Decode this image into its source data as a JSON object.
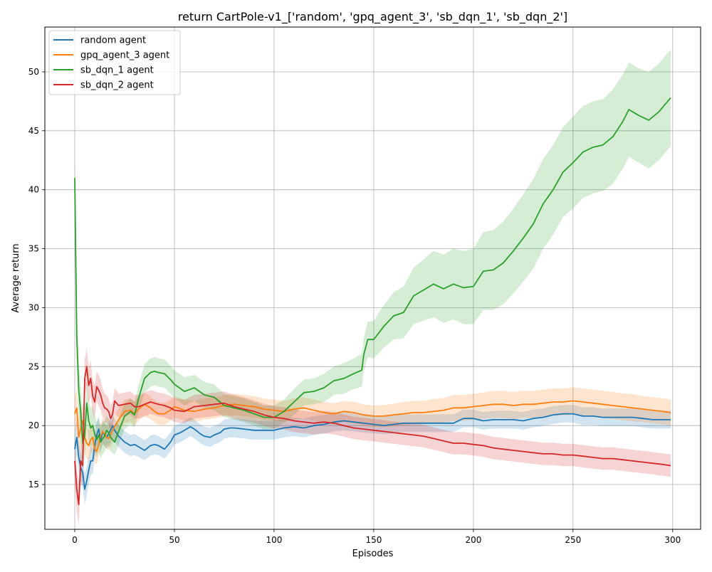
{
  "chart_data": {
    "type": "line",
    "title": "return CartPole-v1_['random', 'gpq_agent_3', 'sb_dqn_1', 'sb_dqn_2']",
    "xlabel": "Episodes",
    "ylabel": "Average return",
    "xlim": [
      -15,
      314
    ],
    "ylim": [
      11.2,
      53.8
    ],
    "xticks": [
      0,
      50,
      100,
      150,
      200,
      250,
      300
    ],
    "yticks": [
      15,
      20,
      25,
      30,
      35,
      40,
      45,
      50
    ],
    "grid": true,
    "legend_position": "top-left",
    "series": [
      {
        "name": "random agent",
        "color": "#1f77b4",
        "x": [
          0,
          1,
          2,
          3,
          4,
          5,
          6,
          7,
          8,
          9,
          10,
          11,
          12,
          13,
          14,
          15,
          16,
          17,
          18,
          19,
          20,
          22,
          25,
          28,
          30,
          32,
          35,
          38,
          40,
          42,
          45,
          48,
          50,
          53,
          55,
          58,
          60,
          63,
          65,
          68,
          70,
          73,
          75,
          78,
          80,
          85,
          90,
          95,
          100,
          105,
          110,
          115,
          120,
          125,
          130,
          135,
          140,
          145,
          150,
          155,
          160,
          165,
          170,
          175,
          180,
          185,
          190,
          195,
          200,
          205,
          210,
          215,
          220,
          225,
          230,
          235,
          240,
          245,
          250,
          255,
          260,
          265,
          270,
          275,
          280,
          285,
          290,
          295,
          299
        ],
        "y": [
          18.0,
          19.0,
          17.3,
          16.4,
          16.0,
          14.6,
          15.3,
          16.2,
          17.0,
          17.0,
          18.3,
          19.2,
          19.7,
          18.7,
          19.5,
          19.2,
          19.0,
          19.3,
          19.6,
          20.0,
          19.6,
          19.1,
          18.6,
          18.3,
          18.4,
          18.2,
          17.9,
          18.3,
          18.4,
          18.3,
          18.0,
          18.6,
          19.2,
          19.4,
          19.6,
          19.9,
          19.7,
          19.3,
          19.1,
          19.0,
          19.2,
          19.4,
          19.7,
          19.8,
          19.8,
          19.7,
          19.6,
          19.6,
          19.6,
          19.8,
          19.9,
          19.8,
          20.0,
          20.1,
          20.3,
          20.4,
          20.3,
          20.2,
          20.1,
          20.0,
          20.1,
          20.2,
          20.2,
          20.2,
          20.2,
          20.2,
          20.2,
          20.6,
          20.6,
          20.4,
          20.5,
          20.5,
          20.5,
          20.4,
          20.6,
          20.7,
          20.9,
          21.0,
          21.0,
          20.8,
          20.8,
          20.7,
          20.7,
          20.7,
          20.7,
          20.6,
          20.5,
          20.5,
          20.5
        ],
        "band_width": [
          1.5,
          1.4,
          1.3,
          1.3,
          1.3,
          1.3,
          1.2,
          1.2,
          1.2,
          1.1,
          1.1,
          1.1,
          1.1,
          1.0,
          1.0,
          1.0,
          1.0,
          1.0,
          1.0,
          1.0,
          0.95,
          0.95,
          0.9,
          0.9,
          0.9,
          0.85,
          0.85,
          0.85,
          0.85,
          0.8,
          0.8,
          0.8,
          0.8,
          0.8,
          0.8,
          0.8,
          0.8,
          0.8,
          0.8,
          0.8,
          0.8,
          0.8,
          0.8,
          0.8,
          0.8,
          0.8,
          0.8,
          0.8,
          0.8,
          0.8,
          0.8,
          0.8,
          0.8,
          0.8,
          0.8,
          0.8,
          0.8,
          0.8,
          0.75,
          0.75,
          0.75,
          0.75,
          0.75,
          0.75,
          0.75,
          0.75,
          0.75,
          0.75,
          0.75,
          0.75,
          0.75,
          0.75,
          0.75,
          0.75,
          0.75,
          0.75,
          0.75,
          0.75,
          0.75,
          0.75,
          0.75,
          0.75,
          0.75,
          0.75,
          0.75,
          0.75,
          0.75,
          0.75,
          0.75
        ]
      },
      {
        "name": "gpq_agent_3 agent",
        "color": "#ff7f0e",
        "x": [
          0,
          1,
          2,
          3,
          4,
          5,
          6,
          7,
          8,
          9,
          10,
          11,
          12,
          13,
          14,
          15,
          16,
          17,
          18,
          19,
          20,
          22,
          25,
          28,
          30,
          32,
          35,
          38,
          40,
          42,
          45,
          48,
          50,
          55,
          60,
          65,
          70,
          75,
          80,
          85,
          90,
          95,
          100,
          105,
          110,
          115,
          120,
          125,
          130,
          135,
          140,
          145,
          150,
          155,
          160,
          165,
          170,
          175,
          180,
          185,
          190,
          195,
          200,
          205,
          210,
          215,
          220,
          225,
          230,
          235,
          240,
          245,
          250,
          255,
          260,
          265,
          270,
          275,
          280,
          285,
          290,
          295,
          299
        ],
        "y": [
          21.0,
          21.5,
          19.0,
          19.8,
          20.4,
          19.0,
          18.5,
          18.3,
          18.8,
          19.0,
          18.0,
          17.8,
          18.4,
          19.1,
          19.5,
          19.3,
          19.0,
          18.9,
          19.2,
          19.6,
          19.9,
          20.5,
          21.2,
          21.3,
          21.0,
          21.4,
          21.8,
          21.5,
          21.2,
          21.0,
          21.0,
          21.3,
          21.6,
          21.3,
          21.2,
          21.4,
          21.5,
          21.7,
          21.8,
          21.7,
          21.6,
          21.4,
          21.3,
          21.2,
          21.4,
          21.5,
          21.3,
          21.1,
          21.0,
          21.2,
          21.1,
          20.9,
          20.8,
          20.8,
          20.9,
          21.0,
          21.1,
          21.1,
          21.2,
          21.3,
          21.5,
          21.5,
          21.6,
          21.7,
          21.8,
          21.8,
          21.7,
          21.8,
          21.8,
          21.9,
          22.0,
          22.0,
          22.1,
          22.0,
          21.9,
          21.8,
          21.7,
          21.6,
          21.5,
          21.4,
          21.3,
          21.2,
          21.1
        ],
        "band_width": [
          1.6,
          1.5,
          1.5,
          1.4,
          1.4,
          1.3,
          1.3,
          1.3,
          1.2,
          1.2,
          1.2,
          1.1,
          1.1,
          1.1,
          1.1,
          1.0,
          1.0,
          1.0,
          1.0,
          1.0,
          1.0,
          1.0,
          1.0,
          1.0,
          1.0,
          1.0,
          1.0,
          0.95,
          0.95,
          0.95,
          0.95,
          0.9,
          0.9,
          0.9,
          0.9,
          0.9,
          0.9,
          0.9,
          0.9,
          0.9,
          0.9,
          0.9,
          0.9,
          0.9,
          0.9,
          0.9,
          0.9,
          0.9,
          0.9,
          0.9,
          0.9,
          0.9,
          0.9,
          0.95,
          0.95,
          1.0,
          1.0,
          1.0,
          1.05,
          1.05,
          1.1,
          1.1,
          1.1,
          1.1,
          1.15,
          1.15,
          1.15,
          1.15,
          1.15,
          1.15,
          1.15,
          1.15,
          1.15,
          1.15,
          1.15,
          1.15,
          1.15,
          1.15,
          1.15,
          1.1,
          1.1,
          1.1,
          1.1
        ]
      },
      {
        "name": "sb_dqn_1 agent",
        "color": "#2ca02c",
        "x": [
          0,
          1,
          2,
          3,
          4,
          5,
          6,
          7,
          8,
          9,
          10,
          11,
          12,
          13,
          14,
          15,
          16,
          17,
          18,
          19,
          20,
          22,
          25,
          28,
          30,
          32,
          35,
          38,
          40,
          42,
          45,
          48,
          50,
          55,
          60,
          65,
          70,
          75,
          80,
          85,
          90,
          95,
          100,
          105,
          110,
          115,
          120,
          125,
          130,
          135,
          140,
          144,
          145,
          147,
          150,
          155,
          160,
          165,
          170,
          175,
          180,
          185,
          190,
          195,
          200,
          205,
          210,
          215,
          220,
          225,
          230,
          235,
          240,
          245,
          250,
          255,
          260,
          265,
          270,
          275,
          278,
          283,
          288,
          293,
          299
        ],
        "y": [
          41.0,
          27.6,
          23.0,
          21.1,
          18.5,
          19.2,
          21.9,
          20.4,
          19.8,
          20.0,
          19.3,
          18.8,
          19.2,
          18.6,
          18.9,
          19.1,
          19.6,
          19.4,
          19.0,
          18.8,
          18.6,
          19.5,
          20.8,
          21.2,
          20.9,
          22.3,
          24.0,
          24.5,
          24.6,
          24.5,
          24.4,
          23.9,
          23.5,
          22.9,
          23.2,
          22.6,
          22.4,
          21.7,
          21.5,
          21.3,
          21.0,
          20.7,
          20.7,
          21.2,
          22.0,
          22.8,
          22.9,
          23.2,
          23.8,
          24.0,
          24.4,
          24.7,
          26.0,
          27.3,
          27.3,
          28.4,
          29.3,
          29.6,
          31.0,
          31.5,
          32.0,
          31.6,
          32.0,
          31.7,
          31.8,
          33.1,
          33.2,
          33.8,
          34.8,
          35.9,
          37.1,
          38.8,
          40.0,
          41.5,
          42.3,
          43.2,
          43.6,
          43.8,
          44.5,
          45.8,
          46.8,
          46.3,
          45.9,
          46.6,
          47.8
        ],
        "band_width": [
          2.5,
          2.4,
          2.3,
          2.2,
          2.1,
          2.0,
          1.9,
          1.8,
          1.7,
          1.6,
          1.5,
          1.5,
          1.4,
          1.4,
          1.3,
          1.3,
          1.2,
          1.2,
          1.2,
          1.1,
          1.1,
          1.1,
          1.1,
          1.1,
          1.1,
          1.1,
          1.2,
          1.2,
          1.2,
          1.2,
          1.2,
          1.2,
          1.2,
          1.2,
          1.1,
          1.1,
          1.1,
          1.0,
          1.0,
          1.0,
          1.0,
          1.0,
          1.0,
          1.0,
          1.1,
          1.1,
          1.1,
          1.2,
          1.2,
          1.3,
          1.3,
          1.4,
          1.4,
          1.5,
          1.6,
          1.8,
          2.0,
          2.2,
          2.4,
          2.6,
          2.8,
          2.9,
          3.0,
          3.1,
          3.2,
          3.3,
          3.4,
          3.5,
          3.6,
          3.7,
          3.8,
          3.8,
          3.8,
          3.8,
          3.9,
          3.9,
          3.9,
          3.9,
          4.0,
          4.0,
          4.0,
          4.0,
          4.1,
          4.1,
          4.1
        ]
      },
      {
        "name": "sb_dqn_2 agent",
        "color": "#d62728",
        "x": [
          0,
          1,
          2,
          3,
          4,
          5,
          6,
          7,
          8,
          9,
          10,
          11,
          12,
          13,
          14,
          15,
          16,
          17,
          18,
          19,
          20,
          22,
          25,
          28,
          30,
          32,
          35,
          38,
          40,
          42,
          45,
          48,
          50,
          55,
          60,
          65,
          70,
          75,
          80,
          85,
          90,
          95,
          100,
          105,
          110,
          115,
          120,
          125,
          130,
          135,
          140,
          145,
          150,
          155,
          160,
          165,
          170,
          175,
          180,
          185,
          190,
          195,
          200,
          205,
          210,
          215,
          220,
          225,
          230,
          235,
          240,
          245,
          250,
          255,
          260,
          265,
          270,
          275,
          280,
          285,
          290,
          295,
          299
        ],
        "y": [
          17.0,
          14.6,
          13.3,
          17.0,
          16.6,
          24.0,
          25.0,
          23.4,
          24.0,
          22.5,
          22.0,
          23.3,
          23.0,
          22.6,
          21.9,
          21.5,
          21.4,
          21.2,
          20.6,
          21.0,
          22.1,
          21.7,
          21.8,
          21.9,
          21.6,
          21.6,
          21.8,
          22.0,
          21.9,
          21.8,
          21.7,
          21.5,
          21.3,
          21.2,
          21.6,
          21.7,
          21.8,
          21.9,
          21.6,
          21.4,
          21.2,
          20.9,
          20.7,
          20.6,
          20.4,
          20.3,
          20.2,
          20.3,
          20.2,
          20.0,
          19.8,
          19.7,
          19.6,
          19.5,
          19.4,
          19.3,
          19.2,
          19.1,
          18.9,
          18.7,
          18.5,
          18.5,
          18.4,
          18.3,
          18.1,
          18.0,
          17.9,
          17.8,
          17.7,
          17.6,
          17.6,
          17.5,
          17.5,
          17.4,
          17.3,
          17.2,
          17.2,
          17.1,
          17.0,
          16.9,
          16.8,
          16.7,
          16.6
        ],
        "band_width": [
          2.0,
          1.9,
          1.8,
          1.7,
          1.7,
          1.6,
          1.6,
          1.5,
          1.5,
          1.4,
          1.4,
          1.3,
          1.3,
          1.3,
          1.2,
          1.2,
          1.2,
          1.1,
          1.1,
          1.1,
          1.1,
          1.0,
          1.0,
          1.0,
          1.0,
          1.0,
          1.0,
          1.0,
          1.0,
          1.0,
          1.0,
          1.0,
          1.0,
          1.0,
          1.0,
          1.0,
          1.0,
          1.0,
          1.0,
          1.0,
          0.95,
          0.95,
          0.95,
          0.95,
          0.95,
          0.95,
          0.95,
          0.95,
          0.95,
          0.95,
          0.95,
          0.95,
          0.95,
          0.95,
          0.95,
          0.95,
          0.95,
          0.95,
          0.95,
          0.95,
          0.95,
          0.95,
          0.95,
          0.95,
          0.95,
          0.95,
          0.95,
          0.95,
          0.95,
          0.95,
          0.95,
          0.95,
          0.95,
          0.95,
          0.95,
          0.95,
          0.95,
          0.95,
          0.95,
          0.95,
          0.95,
          0.95,
          0.95
        ]
      }
    ]
  }
}
